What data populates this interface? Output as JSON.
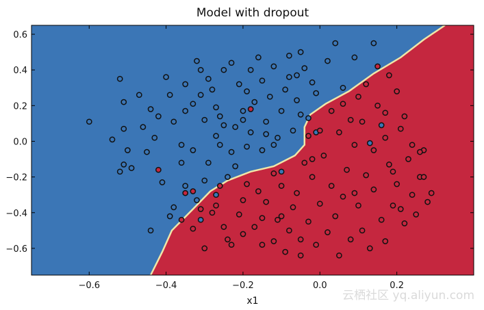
{
  "chart_data": {
    "type": "scatter",
    "title": "Model with dropout",
    "xlabel": "x1",
    "ylabel": "",
    "xlim": [
      -0.75,
      0.4
    ],
    "ylim": [
      -0.75,
      0.65
    ],
    "xticks": [
      -0.6,
      -0.4,
      -0.2,
      0.0,
      0.2
    ],
    "xtick_labels": [
      "−0.6",
      "−0.4",
      "−0.2",
      "0.0",
      "0.2"
    ],
    "yticks": [
      -0.6,
      -0.4,
      -0.2,
      0.0,
      0.2,
      0.4,
      0.6
    ],
    "ytick_labels": [
      "−0.6",
      "−0.4",
      "−0.2",
      "0.0",
      "0.2",
      "0.4",
      "0.6"
    ],
    "grid": false,
    "colors": {
      "class_blue": "#3b76b6",
      "class_red": "#c5273f",
      "boundary": "#f0e6a8",
      "point_edge": "#111111"
    },
    "decision_boundary": {
      "points": [
        [
          -0.44,
          -0.75
        ],
        [
          -0.41,
          -0.62
        ],
        [
          -0.385,
          -0.5
        ],
        [
          -0.33,
          -0.38
        ],
        [
          -0.285,
          -0.28
        ],
        [
          -0.24,
          -0.22
        ],
        [
          -0.18,
          -0.17
        ],
        [
          -0.12,
          -0.14
        ],
        [
          -0.065,
          -0.08
        ],
        [
          -0.04,
          -0.02
        ],
        [
          -0.04,
          0.08
        ],
        [
          -0.025,
          0.15
        ],
        [
          0.015,
          0.21
        ],
        [
          0.075,
          0.28
        ],
        [
          0.14,
          0.38
        ],
        [
          0.21,
          0.47
        ],
        [
          0.27,
          0.57
        ],
        [
          0.325,
          0.65
        ]
      ]
    },
    "series": [
      {
        "class": "blue",
        "points": [
          [
            -0.6,
            0.11
          ],
          [
            -0.54,
            0.01
          ],
          [
            -0.52,
            0.35
          ],
          [
            -0.51,
            0.22
          ],
          [
            -0.51,
            0.07
          ],
          [
            -0.5,
            -0.05
          ],
          [
            -0.51,
            -0.13
          ],
          [
            -0.49,
            -0.15
          ],
          [
            -0.52,
            -0.17
          ],
          [
            -0.46,
            0.08
          ],
          [
            -0.44,
            0.18
          ],
          [
            -0.43,
            0.02
          ],
          [
            -0.42,
            0.14
          ],
          [
            -0.4,
            0.36
          ],
          [
            -0.39,
            0.26
          ],
          [
            -0.38,
            0.11
          ],
          [
            -0.36,
            -0.02
          ],
          [
            -0.36,
            -0.12
          ],
          [
            -0.35,
            0.17
          ],
          [
            -0.35,
            0.32
          ],
          [
            -0.33,
            -0.05
          ],
          [
            -0.32,
            0.45
          ],
          [
            -0.31,
            0.4
          ],
          [
            -0.31,
            0.26
          ],
          [
            -0.3,
            0.12
          ],
          [
            -0.29,
            -0.12
          ],
          [
            -0.28,
            0.29
          ],
          [
            -0.27,
            0.03
          ],
          [
            -0.27,
            0.19
          ],
          [
            -0.26,
            -0.02
          ],
          [
            -0.26,
            0.14
          ],
          [
            -0.25,
            0.4
          ],
          [
            -0.24,
            -0.2
          ],
          [
            -0.23,
            -0.06
          ],
          [
            -0.22,
            0.08
          ],
          [
            -0.21,
            0.32
          ],
          [
            -0.2,
            0.17
          ],
          [
            -0.19,
            0.28
          ],
          [
            -0.18,
            0.05
          ],
          [
            -0.17,
            0.22
          ],
          [
            -0.16,
            0.47
          ],
          [
            -0.15,
            0.34
          ],
          [
            -0.14,
            0.11
          ],
          [
            -0.13,
            0.25
          ],
          [
            -0.12,
            0.42
          ],
          [
            -0.11,
            0.02
          ],
          [
            -0.1,
            0.17
          ],
          [
            -0.09,
            0.29
          ],
          [
            -0.08,
            0.36
          ],
          [
            -0.07,
            0.06
          ],
          [
            -0.06,
            0.23
          ],
          [
            -0.05,
            0.5
          ],
          [
            -0.04,
            0.41
          ],
          [
            -0.03,
            0.13
          ],
          [
            -0.02,
            0.33
          ],
          [
            -0.01,
            0.27
          ],
          [
            0.02,
            0.45
          ],
          [
            0.04,
            0.55
          ],
          [
            0.06,
            0.3
          ],
          [
            0.09,
            0.47
          ],
          [
            0.14,
            0.55
          ],
          [
            -0.38,
            -0.37
          ],
          [
            -0.35,
            -0.25
          ],
          [
            -0.32,
            -0.33
          ],
          [
            -0.31,
            -0.44
          ],
          [
            -0.41,
            -0.23
          ],
          [
            -0.39,
            -0.42
          ],
          [
            -0.45,
            -0.06
          ],
          [
            -0.44,
            -0.5
          ],
          [
            -0.29,
            0.35
          ],
          [
            -0.23,
            0.44
          ],
          [
            -0.18,
            0.4
          ],
          [
            -0.22,
            -0.14
          ],
          [
            -0.27,
            -0.3
          ],
          [
            -0.3,
            -0.22
          ],
          [
            -0.15,
            -0.05
          ],
          [
            -0.12,
            -0.02
          ],
          [
            0.13,
            -0.01
          ],
          [
            0.16,
            0.09
          ],
          [
            -0.1,
            -0.17
          ],
          [
            -0.05,
            0.15
          ],
          [
            -0.08,
            0.48
          ],
          [
            -0.14,
            0.04
          ],
          [
            -0.01,
            0.05
          ],
          [
            -0.19,
            -0.03
          ],
          [
            -0.25,
            0.09
          ],
          [
            -0.33,
            0.21
          ],
          [
            -0.47,
            0.26
          ],
          [
            -0.2,
            0.12
          ],
          [
            -0.06,
            0.37
          ]
        ]
      },
      {
        "class": "red",
        "points": [
          [
            -0.42,
            -0.16
          ],
          [
            -0.35,
            -0.29
          ],
          [
            -0.18,
            0.18
          ],
          [
            -0.33,
            -0.49
          ],
          [
            -0.31,
            -0.38
          ],
          [
            -0.28,
            -0.4
          ],
          [
            -0.26,
            -0.25
          ],
          [
            -0.25,
            -0.48
          ],
          [
            -0.23,
            -0.58
          ],
          [
            -0.21,
            -0.41
          ],
          [
            -0.2,
            -0.33
          ],
          [
            -0.2,
            -0.52
          ],
          [
            -0.19,
            -0.24
          ],
          [
            -0.17,
            -0.48
          ],
          [
            -0.16,
            -0.28
          ],
          [
            -0.15,
            -0.43
          ],
          [
            -0.14,
            -0.34
          ],
          [
            -0.12,
            -0.56
          ],
          [
            -0.11,
            -0.44
          ],
          [
            -0.1,
            -0.25
          ],
          [
            -0.09,
            -0.62
          ],
          [
            -0.08,
            -0.5
          ],
          [
            -0.07,
            -0.37
          ],
          [
            -0.06,
            -0.29
          ],
          [
            -0.05,
            -0.55
          ],
          [
            -0.04,
            -0.12
          ],
          [
            -0.03,
            -0.45
          ],
          [
            -0.02,
            -0.2
          ],
          [
            -0.01,
            -0.58
          ],
          [
            0.0,
            -0.35
          ],
          [
            0.01,
            -0.08
          ],
          [
            0.02,
            -0.51
          ],
          [
            0.03,
            -0.25
          ],
          [
            0.04,
            -0.42
          ],
          [
            0.05,
            0.05
          ],
          [
            0.06,
            -0.31
          ],
          [
            0.07,
            -0.16
          ],
          [
            0.08,
            -0.55
          ],
          [
            0.09,
            -0.02
          ],
          [
            0.1,
            -0.36
          ],
          [
            0.11,
            0.11
          ],
          [
            0.12,
            -0.19
          ],
          [
            0.13,
            -0.6
          ],
          [
            0.14,
            -0.27
          ],
          [
            0.15,
            0.2
          ],
          [
            0.16,
            -0.44
          ],
          [
            0.17,
            0.02
          ],
          [
            0.18,
            -0.13
          ],
          [
            0.19,
            -0.36
          ],
          [
            0.2,
            -0.24
          ],
          [
            0.21,
            0.07
          ],
          [
            0.22,
            -0.46
          ],
          [
            0.23,
            -0.1
          ],
          [
            0.24,
            -0.3
          ],
          [
            0.25,
            -0.41
          ],
          [
            0.26,
            -0.2
          ],
          [
            0.27,
            -0.05
          ],
          [
            0.28,
            -0.34
          ],
          [
            0.29,
            -0.29
          ],
          [
            0.03,
            0.17
          ],
          [
            0.06,
            0.21
          ],
          [
            0.1,
            0.25
          ],
          [
            0.12,
            0.32
          ],
          [
            0.15,
            0.42
          ],
          [
            0.17,
            0.16
          ],
          [
            0.18,
            0.37
          ],
          [
            0.2,
            0.28
          ],
          [
            0.22,
            0.14
          ],
          [
            0.24,
            -0.02
          ],
          [
            0.26,
            -0.06
          ],
          [
            -0.12,
            -0.18
          ],
          [
            -0.02,
            -0.1
          ],
          [
            0.08,
            0.12
          ],
          [
            -0.36,
            -0.44
          ],
          [
            -0.27,
            -0.36
          ],
          [
            -0.24,
            -0.55
          ],
          [
            -0.15,
            -0.58
          ],
          [
            0.05,
            -0.64
          ],
          [
            -0.05,
            -0.64
          ],
          [
            -0.3,
            -0.6
          ],
          [
            0.11,
            -0.5
          ],
          [
            0.17,
            -0.56
          ],
          [
            0.21,
            -0.38
          ],
          [
            0.0,
            0.06
          ],
          [
            -0.03,
            0.03
          ],
          [
            0.14,
            -0.05
          ],
          [
            0.19,
            -0.17
          ],
          [
            0.09,
            -0.29
          ],
          [
            0.27,
            -0.2
          ],
          [
            -0.1,
            -0.42
          ],
          [
            -0.33,
            -0.28
          ]
        ]
      }
    ]
  },
  "watermark": "云栖社区 yq.aliyun.com"
}
